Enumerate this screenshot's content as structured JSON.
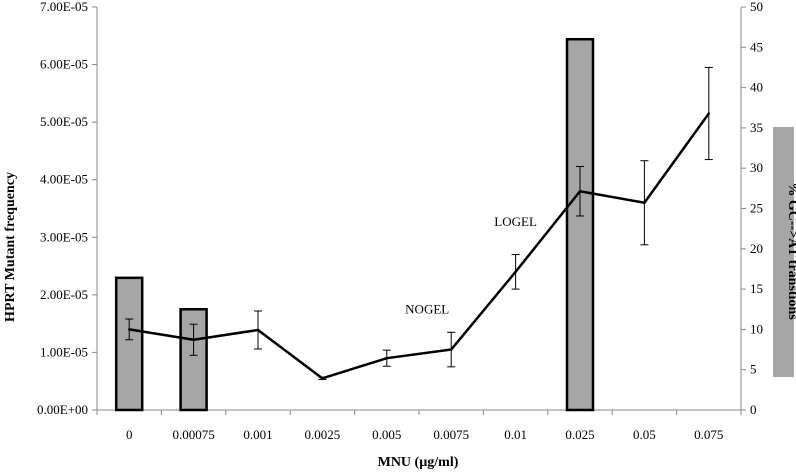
{
  "chart_data": {
    "type": "bar+line",
    "categories": [
      "0",
      "0.00075",
      "0.001",
      "0.0025",
      "0.005",
      "0.0075",
      "0.01",
      "0.025",
      "0.05",
      "0.075"
    ],
    "xlabel": "MNU (µg/ml)",
    "ylabel_left": "HPRT Mutant frequency",
    "ylabel_right": "% GC-->AT transtions",
    "y_left": {
      "min": 0,
      "max": 7e-05,
      "ticks": [
        0,
        1e-05,
        2e-05,
        3e-05,
        4e-05,
        5e-05,
        6e-05,
        7e-05
      ],
      "tick_labels": [
        "0.00E+00",
        "1.00E-05",
        "2.00E-05",
        "3.00E-05",
        "4.00E-05",
        "5.00E-05",
        "6.00E-05",
        "7.00E-05"
      ]
    },
    "y_right": {
      "min": 0,
      "max": 50,
      "ticks": [
        0,
        5,
        10,
        15,
        20,
        25,
        30,
        35,
        40,
        45,
        50
      ],
      "tick_labels": [
        "0",
        "5",
        "10",
        "15",
        "20",
        "25",
        "30",
        "35",
        "40",
        "45",
        "50"
      ]
    },
    "bars": {
      "axis": "right",
      "values": [
        16.4,
        12.5,
        null,
        null,
        null,
        null,
        null,
        46,
        null,
        null
      ],
      "color": "#a6a6a6"
    },
    "line": {
      "axis": "left",
      "values": [
        1.4e-05,
        1.22e-05,
        1.39e-05,
        5.5e-06,
        9e-06,
        1.05e-05,
        2.4e-05,
        3.8e-05,
        3.6e-05,
        5.15e-05
      ],
      "errors": [
        1.8e-06,
        2.7e-06,
        3.3e-06,
        2e-07,
        1.4e-06,
        3e-06,
        3e-06,
        4.3e-06,
        7.3e-06,
        8e-06
      ],
      "color": "#000000"
    },
    "annotations": [
      {
        "text": "NOGEL",
        "category": "0.0075"
      },
      {
        "text": "LOGEL",
        "category": "0.01"
      }
    ],
    "grid": false,
    "legend": "none"
  }
}
